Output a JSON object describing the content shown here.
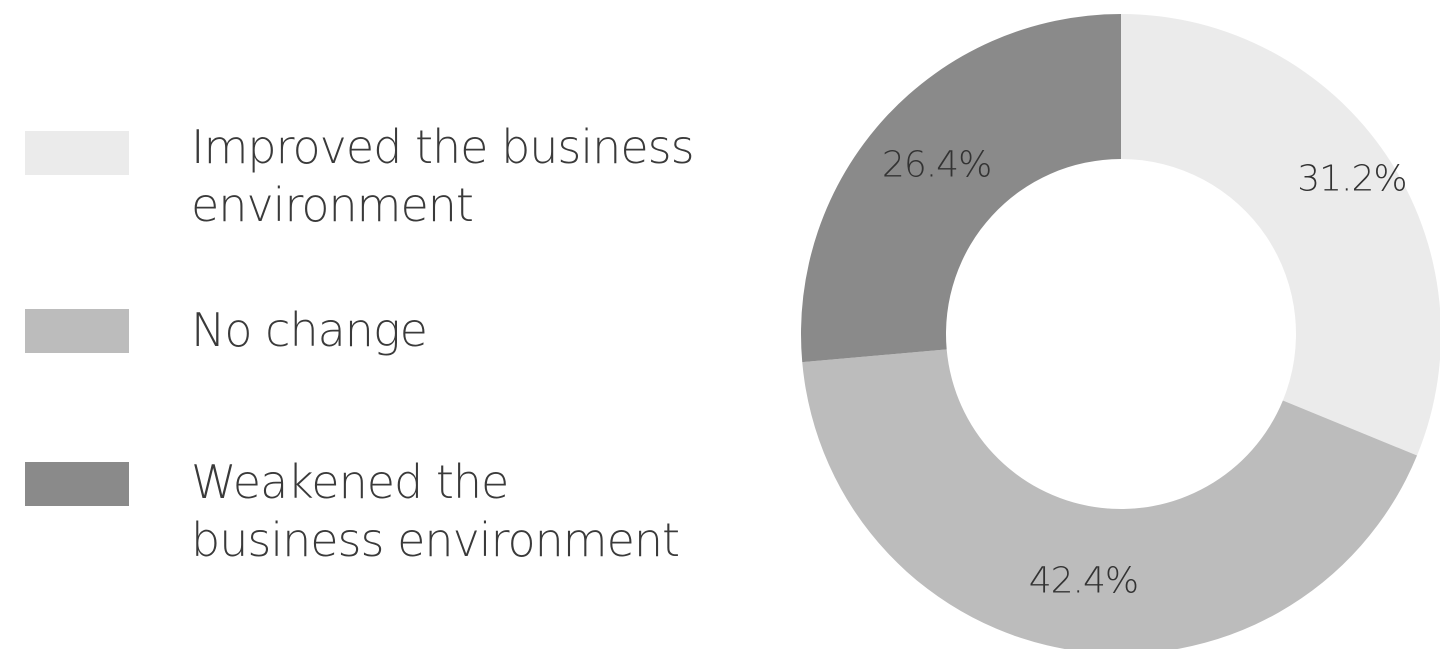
{
  "chart_data": {
    "type": "pie",
    "donut": true,
    "title": "",
    "legend_position": "left",
    "slices": [
      {
        "label": "Improved the business environment",
        "value": 31.2,
        "display": "31.2%",
        "color": "#ebebeb"
      },
      {
        "label": "No change",
        "value": 42.4,
        "display": "42.4%",
        "color": "#bcbcbc"
      },
      {
        "label": "Weakened the business environment",
        "value": 26.4,
        "display": "26.4%",
        "color": "#8a8a8a"
      }
    ]
  },
  "legend": {
    "items": [
      {
        "line1": "Improved the business",
        "line2": "environment",
        "color": "#ebebeb"
      },
      {
        "line1": "No change",
        "line2": "",
        "color": "#bcbcbc"
      },
      {
        "line1": "Weakened the",
        "line2": "business environment",
        "color": "#8a8a8a"
      }
    ]
  }
}
